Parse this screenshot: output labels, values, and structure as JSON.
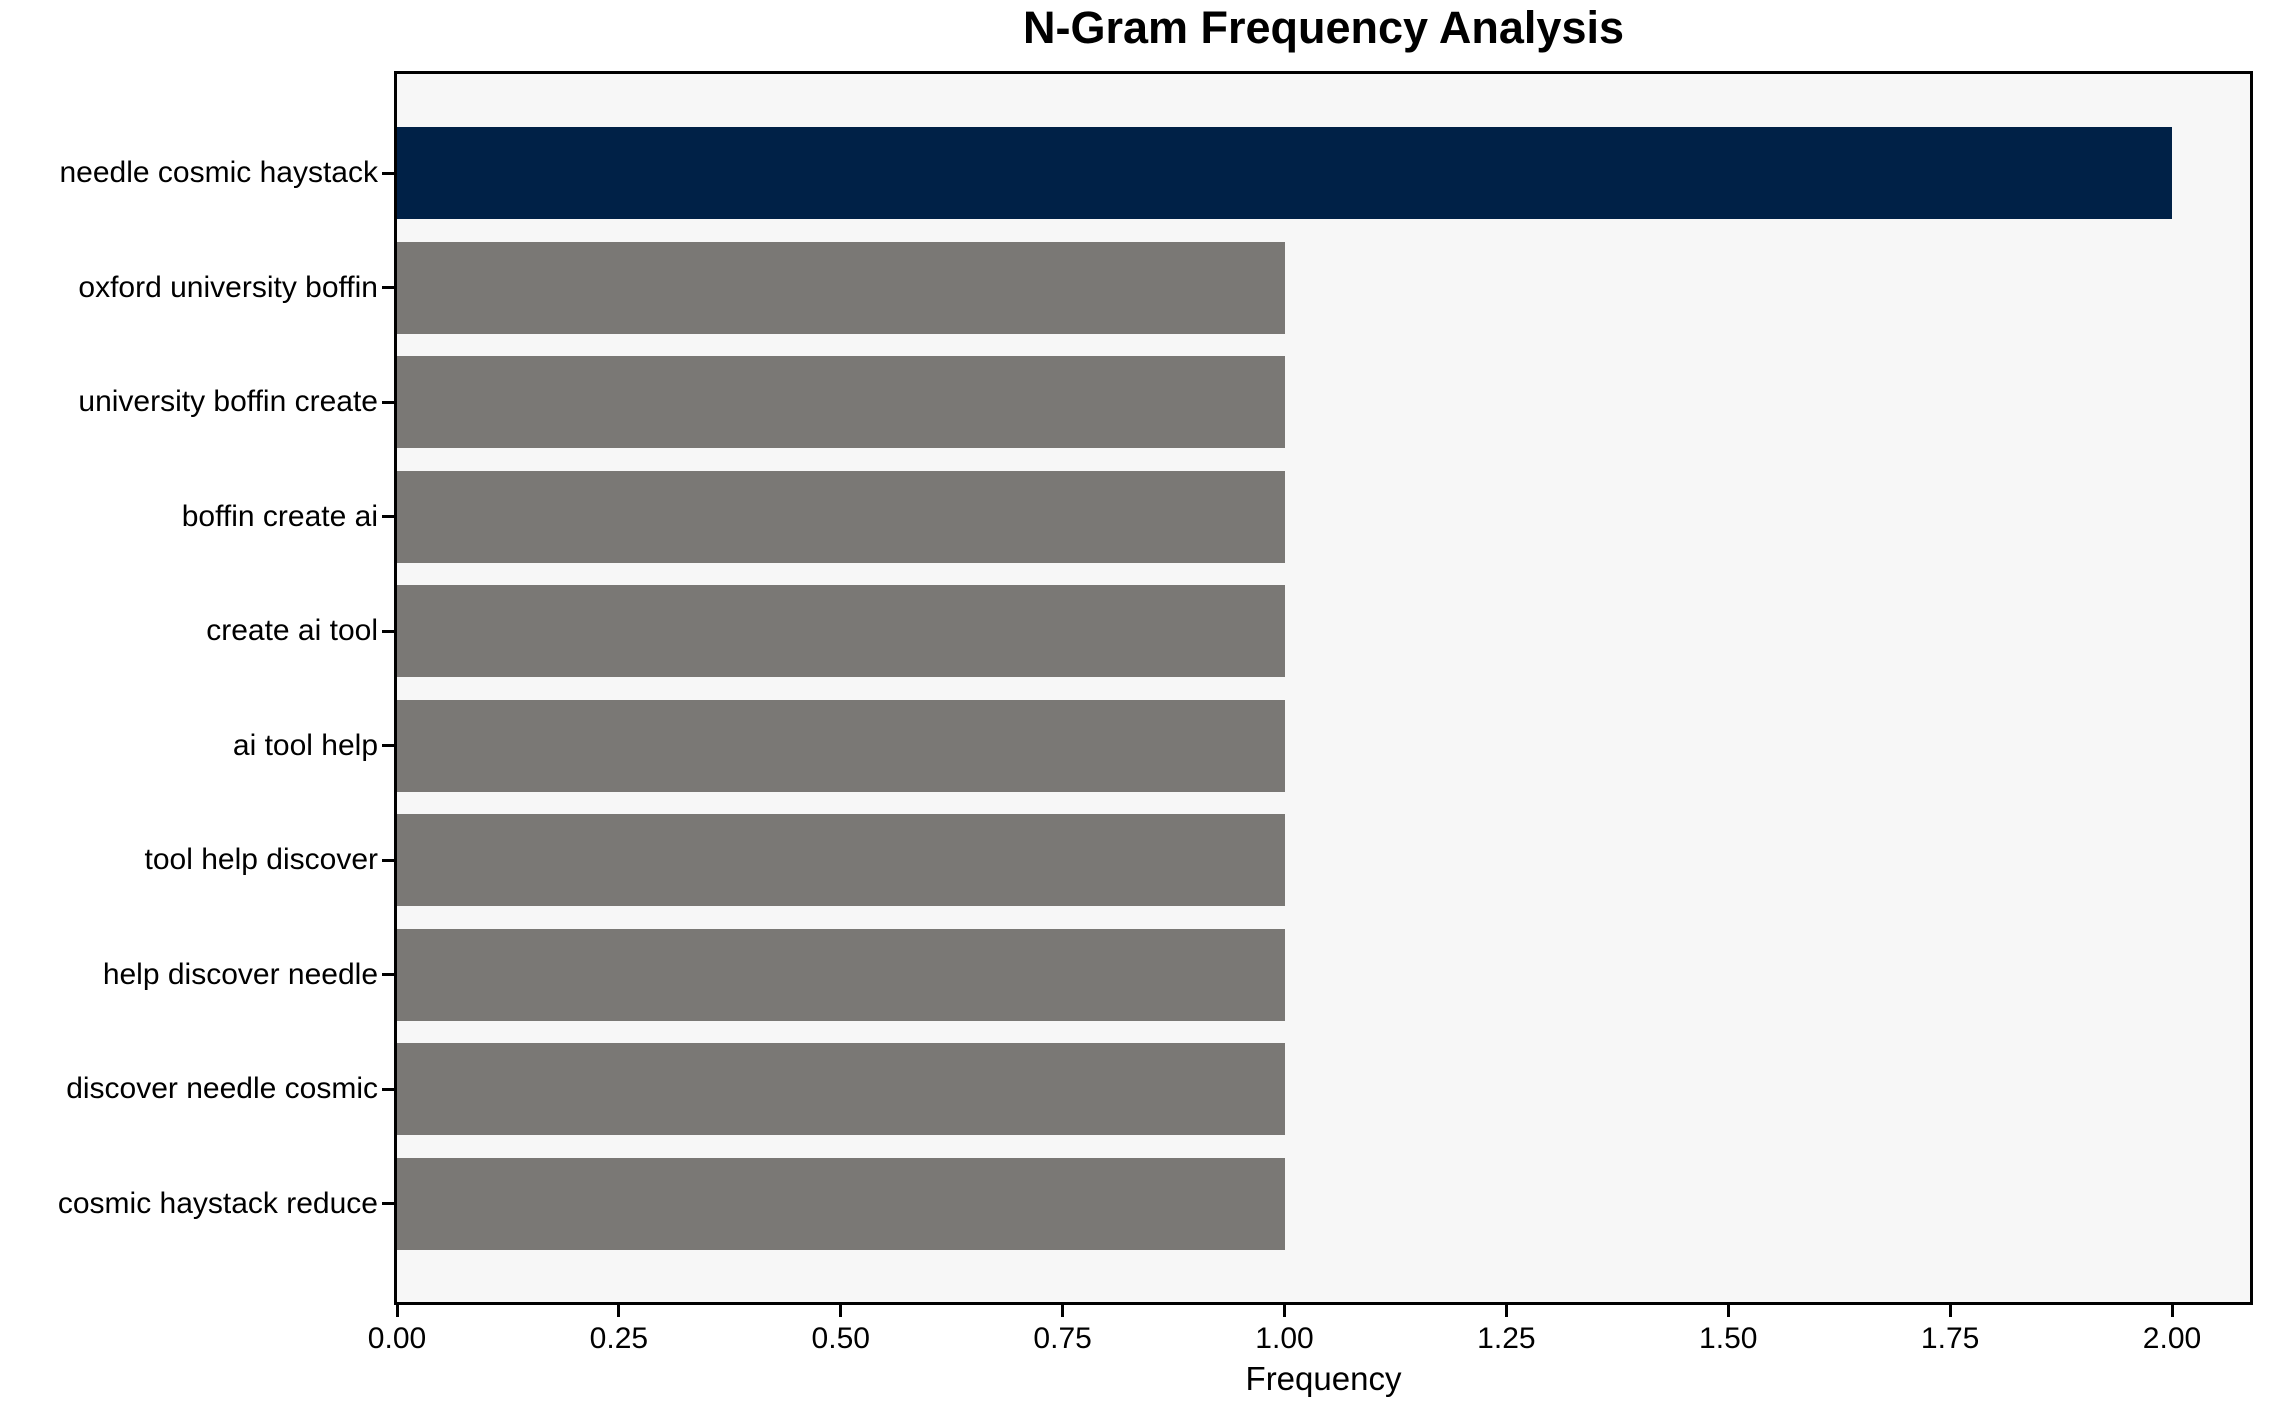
{
  "chart_data": {
    "type": "bar",
    "orientation": "horizontal",
    "title": "N-Gram Frequency Analysis",
    "xlabel": "Frequency",
    "ylabel": "",
    "categories": [
      "needle cosmic haystack",
      "oxford university boffin",
      "university boffin create",
      "boffin create ai",
      "create ai tool",
      "ai tool help",
      "tool help discover",
      "help discover needle",
      "discover needle cosmic",
      "cosmic haystack reduce"
    ],
    "values": [
      2,
      1,
      1,
      1,
      1,
      1,
      1,
      1,
      1,
      1
    ],
    "bar_colors": [
      "#002147",
      "#7a7875",
      "#7a7875",
      "#7a7875",
      "#7a7875",
      "#7a7875",
      "#7a7875",
      "#7a7875",
      "#7a7875",
      "#7a7875"
    ],
    "xlim": [
      0,
      2.1
    ],
    "xticks": [
      "0.00",
      "0.25",
      "0.50",
      "0.75",
      "1.00",
      "1.25",
      "1.50",
      "1.75",
      "2.00"
    ],
    "xtick_values": [
      0,
      0.25,
      0.5,
      0.75,
      1.0,
      1.25,
      1.5,
      1.75,
      2.0
    ],
    "grid": false,
    "legend": null,
    "colors": {
      "highlight_bar": "#002147",
      "default_bar": "#7a7875",
      "plot_background": "#f7f7f7",
      "figure_background": "#ffffff",
      "spine": "#000000",
      "text": "#000000"
    }
  }
}
